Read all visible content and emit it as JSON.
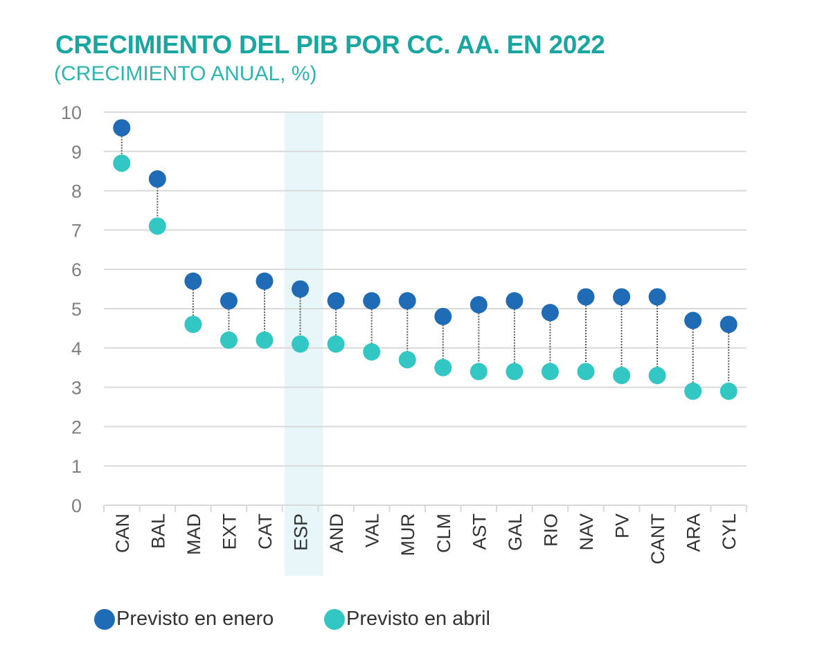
{
  "chart_data": {
    "type": "dot-plot",
    "title": "CRECIMIENTO DEL PIB POR CC. AA. EN 2022",
    "subtitle": "(CRECIMIENTO ANUAL, %)",
    "categories": [
      "CAN",
      "BAL",
      "MAD",
      "EXT",
      "CAT",
      "ESP",
      "AND",
      "VAL",
      "MUR",
      "CLM",
      "AST",
      "GAL",
      "RIO",
      "NAV",
      "PV",
      "CANT",
      "ARA",
      "CYL"
    ],
    "highlight_category": "ESP",
    "ylim": [
      0,
      10
    ],
    "yticks": [
      0,
      1,
      2,
      3,
      4,
      5,
      6,
      7,
      8,
      9,
      10
    ],
    "grid": true,
    "legend_position": "bottom-left",
    "series": [
      {
        "name": "Previsto en enero",
        "color": "#1f6bb5",
        "values": [
          9.6,
          8.3,
          5.7,
          5.2,
          5.7,
          5.5,
          5.2,
          5.2,
          5.2,
          4.8,
          5.1,
          5.2,
          4.9,
          5.3,
          5.3,
          5.3,
          4.7,
          4.6
        ]
      },
      {
        "name": "Previsto en abril",
        "color": "#33c7c3",
        "values": [
          8.7,
          7.1,
          4.6,
          4.2,
          4.2,
          4.1,
          4.1,
          3.9,
          3.7,
          3.5,
          3.4,
          3.4,
          3.4,
          3.4,
          3.3,
          3.3,
          2.9,
          2.9
        ]
      }
    ]
  }
}
